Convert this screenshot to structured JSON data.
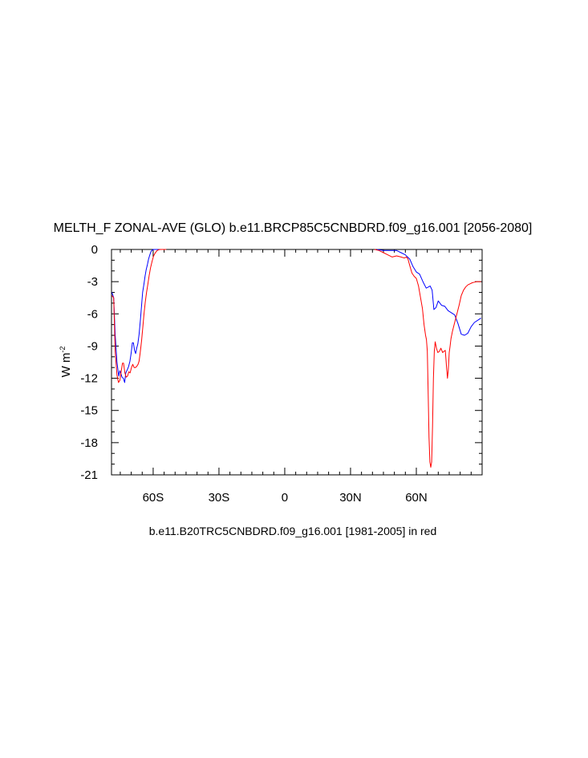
{
  "chart_data": {
    "type": "line",
    "title": "MELTH_F ZONAL-AVE (GLO) b.e11.BRCP85C5CNBDRD.f09_g16.001 [2056-2080]",
    "caption": "b.e11.B20TRC5CNBDRD.f09_g16.001 [1981-2005] in red",
    "ylabel": "W m",
    "ylabel_sup": "-2",
    "xlim": [
      -79,
      90
    ],
    "ylim": [
      -21,
      0
    ],
    "x_ticks": [
      -60,
      -30,
      0,
      30,
      60
    ],
    "x_tick_labels": [
      "60S",
      "30S",
      "0",
      "30N",
      "60N"
    ],
    "y_ticks": [
      0,
      -3,
      -6,
      -9,
      -12,
      -15,
      -18,
      -21
    ],
    "y_tick_labels": [
      "0",
      "-3",
      "-6",
      "-9",
      "-12",
      "-15",
      "-18",
      "-21"
    ],
    "grid": false,
    "colors": {
      "future": "#0000ff",
      "historical": "#ff0000"
    },
    "series": [
      {
        "color": "#0000ff",
        "segments": [
          {
            "x": [
              -78.8,
              -78,
              -77.3,
              -76.5,
              -75.7,
              -75.2,
              -74.7,
              -74.2,
              -73.6,
              -73.0,
              -72.5,
              -71.8,
              -71.2,
              -70.6,
              -70.0,
              -69.5,
              -69.0,
              -68.5,
              -68.0,
              -67.5,
              -67.0,
              -66.4,
              -65.8,
              -65.3,
              -64.8,
              -64.2,
              -63.7,
              -63.2,
              -62.6,
              -62.1,
              -61.5,
              -61.0,
              -60.4,
              -59.8,
              -59.3,
              -58.8,
              -58.2,
              -57.7,
              -57.2
            ],
            "y": [
              -4.0,
              -4.5,
              -8.0,
              -10.5,
              -11.8,
              -11.3,
              -11.6,
              -11.9,
              -12.0,
              -12.4,
              -11.5,
              -11.2,
              -10.9,
              -10.4,
              -9.6,
              -8.7,
              -8.7,
              -9.4,
              -9.7,
              -9.2,
              -8.8,
              -7.9,
              -6.5,
              -5.2,
              -4.0,
              -3.2,
              -2.5,
              -1.9,
              -1.4,
              -0.9,
              -0.5,
              -0.2,
              -0.05,
              0,
              0,
              0,
              0,
              0,
              0
            ]
          },
          {
            "x": [
              42,
              45,
              48,
              51,
              53,
              55,
              57,
              58.5,
              60,
              61.5,
              63,
              64.5,
              65.5,
              66.3,
              67.2,
              68,
              69,
              70,
              71.5,
              73,
              74.5,
              76,
              77.5,
              79,
              80.5,
              82,
              83.5,
              85,
              86.5,
              88,
              89.5
            ],
            "y": [
              0,
              -0.1,
              -0.1,
              -0.1,
              -0.3,
              -0.5,
              -0.9,
              -1.6,
              -2.1,
              -2.3,
              -3.0,
              -3.6,
              -3.5,
              -3.4,
              -3.8,
              -5.6,
              -5.4,
              -4.8,
              -5.2,
              -5.3,
              -5.7,
              -5.9,
              -6.1,
              -6.9,
              -7.9,
              -8.0,
              -7.8,
              -7.2,
              -6.8,
              -6.6,
              -6.4
            ]
          }
        ]
      },
      {
        "color": "#ff0000",
        "segments": [
          {
            "x": [
              -78.8,
              -78,
              -77.3,
              -76.5,
              -75.8,
              -75.2,
              -74.6,
              -74.0,
              -73.5,
              -72.9,
              -72.3,
              -71.7,
              -71.1,
              -70.5,
              -69.9,
              -69.3,
              -68.7,
              -68.1,
              -67.5,
              -66.9,
              -66.4,
              -65.9,
              -65.3,
              -64.7,
              -64.2,
              -63.6,
              -63.0,
              -62.4,
              -61.8,
              -61.2,
              -60.5,
              -59.8,
              -59.0,
              -58.2,
              -57.4,
              -56.6,
              -55.8,
              -55.0,
              -54.0
            ],
            "y": [
              -4.3,
              -4.5,
              -9.5,
              -11.7,
              -12.4,
              -12.2,
              -11.4,
              -10.6,
              -10.6,
              -11.5,
              -11.9,
              -11.8,
              -11.4,
              -11.5,
              -11.0,
              -10.7,
              -11.0,
              -11.0,
              -10.9,
              -10.7,
              -10.4,
              -9.6,
              -8.5,
              -7.2,
              -6.0,
              -4.9,
              -4.0,
              -3.2,
              -2.4,
              -1.7,
              -1.1,
              -0.6,
              -0.3,
              -0.1,
              -0.02,
              0,
              0,
              0,
              0
            ]
          },
          {
            "x": [
              41,
              43,
              45,
              47,
              49,
              51,
              53,
              54.5,
              55.5,
              56.2,
              57,
              58,
              59,
              60,
              61,
              62,
              62.8,
              63.5,
              64.2,
              64.6,
              65.0,
              65.4,
              65.8,
              66.2,
              66.6,
              67.0,
              67.4,
              67.8,
              68.2,
              68.6,
              69.2,
              69.8,
              70.5,
              71.2,
              72,
              72.6,
              73.2,
              73.8,
              74.2,
              74.6,
              75.0,
              75.4,
              75.8,
              76.5,
              77.5,
              78.5,
              79.5,
              80.5,
              81.5,
              82.5,
              83.5,
              84.5,
              85.5,
              86.5,
              87.5,
              88.5,
              89.5
            ],
            "y": [
              0,
              -0.1,
              -0.3,
              -0.5,
              -0.7,
              -0.6,
              -0.7,
              -0.8,
              -0.7,
              -0.9,
              -1.5,
              -2.2,
              -2.5,
              -2.7,
              -3.4,
              -4.6,
              -5.5,
              -7.0,
              -8.0,
              -8.4,
              -9.5,
              -13.5,
              -17.5,
              -19.8,
              -20.3,
              -19.8,
              -16.5,
              -12.0,
              -9.5,
              -8.6,
              -9.2,
              -9.6,
              -9.5,
              -9.2,
              -9.6,
              -9.5,
              -9.4,
              -11.0,
              -12.0,
              -11.2,
              -9.6,
              -9.0,
              -8.3,
              -7.6,
              -6.8,
              -6.0,
              -5.2,
              -4.3,
              -3.8,
              -3.5,
              -3.3,
              -3.2,
              -3.1,
              -3.05,
              -3.0,
              -3.0,
              -3.0
            ]
          }
        ]
      }
    ]
  }
}
